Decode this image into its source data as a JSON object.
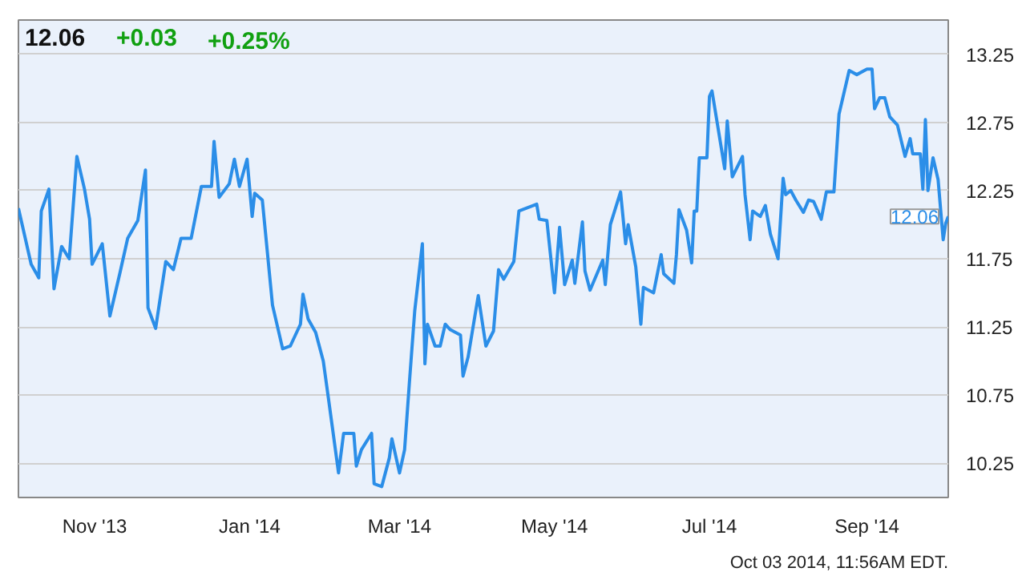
{
  "chart_data": {
    "type": "line",
    "title": "12.06",
    "annotations": [
      "+0.03",
      "+0.25%",
      {
        "text": "12.06",
        "x": "2014-10-03",
        "y": 12.06
      },
      "Oct 03 2014, 11:56AM EDT."
    ],
    "x": [
      "2013-10-02",
      "2013-10-07",
      "2013-10-10",
      "2013-10-11",
      "2013-10-14",
      "2013-10-16",
      "2013-10-19",
      "2013-10-22",
      "2013-10-25",
      "2013-10-28",
      "2013-10-30",
      "2013-10-31",
      "2013-11-04",
      "2013-11-07",
      "2013-11-11",
      "2013-11-14",
      "2013-11-18",
      "2013-11-21",
      "2013-11-22",
      "2013-11-25",
      "2013-11-29",
      "2013-12-02",
      "2013-12-05",
      "2013-12-09",
      "2013-12-13",
      "2013-12-17",
      "2013-12-18",
      "2013-12-20",
      "2013-12-24",
      "2013-12-26",
      "2013-12-28",
      "2013-12-31",
      "2014-01-02",
      "2014-01-03",
      "2014-01-06",
      "2014-01-10",
      "2014-01-14",
      "2014-01-17",
      "2014-01-21",
      "2014-01-22",
      "2014-01-24",
      "2014-01-27",
      "2014-01-30",
      "2014-02-01",
      "2014-02-05",
      "2014-02-07",
      "2014-02-11",
      "2014-02-12",
      "2014-02-14",
      "2014-02-18",
      "2014-02-19",
      "2014-02-22",
      "2014-02-25",
      "2014-02-26",
      "2014-03-01",
      "2014-03-03",
      "2014-03-05",
      "2014-03-07",
      "2014-03-10",
      "2014-03-11",
      "2014-03-12",
      "2014-03-15",
      "2014-03-17",
      "2014-03-19",
      "2014-03-21",
      "2014-03-25",
      "2014-03-26",
      "2014-03-28",
      "2014-04-01",
      "2014-04-04",
      "2014-04-07",
      "2014-04-09",
      "2014-04-11",
      "2014-04-15",
      "2014-04-17",
      "2014-04-24",
      "2014-04-25",
      "2014-04-28",
      "2014-05-01",
      "2014-05-03",
      "2014-05-05",
      "2014-05-08",
      "2014-05-09",
      "2014-05-12",
      "2014-05-13",
      "2014-05-15",
      "2014-05-20",
      "2014-05-21",
      "2014-05-23",
      "2014-05-27",
      "2014-05-29",
      "2014-05-30",
      "2014-06-02",
      "2014-06-04",
      "2014-06-05",
      "2014-06-09",
      "2014-06-12",
      "2014-06-13",
      "2014-06-17",
      "2014-06-18",
      "2014-06-19",
      "2014-06-22",
      "2014-06-24",
      "2014-06-25",
      "2014-06-26",
      "2014-06-27",
      "2014-06-30",
      "2014-07-01",
      "2014-07-02",
      "2014-07-07",
      "2014-07-08",
      "2014-07-10",
      "2014-07-14",
      "2014-07-15",
      "2014-07-17",
      "2014-07-18",
      "2014-07-21",
      "2014-07-23",
      "2014-07-25",
      "2014-07-28",
      "2014-07-30",
      "2014-07-31",
      "2014-08-02",
      "2014-08-04",
      "2014-08-07",
      "2014-08-09",
      "2014-08-11",
      "2014-08-14",
      "2014-08-16",
      "2014-08-19",
      "2014-08-21",
      "2014-08-25",
      "2014-08-28",
      "2014-09-01",
      "2014-09-03",
      "2014-09-04",
      "2014-09-06",
      "2014-09-08",
      "2014-09-10",
      "2014-09-13",
      "2014-09-16",
      "2014-09-18",
      "2014-09-19",
      "2014-09-22",
      "2014-09-23",
      "2014-09-24",
      "2014-09-25",
      "2014-09-27",
      "2014-09-29",
      "2014-10-01",
      "2014-10-02",
      "2014-10-03"
    ],
    "series": [
      {
        "color": "#2b8ee8",
        "values": [
          12.12,
          11.71,
          11.61,
          12.1,
          12.26,
          11.53,
          11.84,
          11.75,
          12.5,
          12.26,
          12.04,
          11.71,
          11.86,
          11.33,
          11.65,
          11.9,
          12.03,
          12.4,
          11.39,
          11.24,
          11.73,
          11.67,
          11.9,
          11.9,
          12.28,
          12.28,
          12.61,
          12.2,
          12.3,
          12.48,
          12.28,
          12.48,
          12.06,
          12.23,
          12.18,
          11.41,
          11.09,
          11.11,
          11.27,
          11.49,
          11.31,
          11.21,
          11.0,
          10.73,
          10.18,
          10.47,
          10.47,
          10.23,
          10.35,
          10.47,
          10.1,
          10.08,
          10.29,
          10.43,
          10.18,
          10.35,
          10.87,
          11.37,
          11.86,
          10.98,
          11.27,
          11.11,
          11.11,
          11.27,
          11.23,
          11.19,
          10.89,
          11.03,
          11.48,
          11.11,
          11.22,
          11.67,
          11.6,
          11.73,
          12.1,
          12.15,
          12.04,
          12.03,
          11.5,
          11.98,
          11.56,
          11.74,
          11.57,
          12.02,
          11.66,
          11.52,
          11.74,
          11.56,
          12.0,
          12.24,
          11.86,
          12.0,
          11.69,
          11.27,
          11.54,
          11.5,
          11.78,
          11.64,
          11.57,
          11.78,
          12.11,
          11.96,
          11.72,
          12.1,
          12.1,
          12.49,
          12.49,
          12.94,
          12.98,
          12.41,
          12.76,
          12.35,
          12.5,
          12.22,
          11.89,
          12.1,
          12.06,
          12.14,
          11.93,
          11.75,
          12.34,
          12.22,
          12.25,
          12.18,
          12.09,
          12.18,
          12.17,
          12.04,
          12.24,
          12.24,
          12.81,
          13.13,
          13.1,
          13.14,
          13.14,
          12.85,
          12.93,
          12.93,
          12.79,
          12.73,
          12.5,
          12.63,
          12.52,
          12.52,
          12.26,
          12.77,
          12.25,
          12.49,
          12.33,
          11.89,
          12.01,
          12.06
        ]
      }
    ],
    "xlim": [
      "2013-10-02",
      "2014-10-03"
    ],
    "xticks": [
      {
        "value": "2013-11-01",
        "label": "Nov '13"
      },
      {
        "value": "2014-01-01",
        "label": "Jan '14"
      },
      {
        "value": "2014-03-01",
        "label": "Mar '14"
      },
      {
        "value": "2014-05-01",
        "label": "May '14"
      },
      {
        "value": "2014-07-01",
        "label": "Jul '14"
      },
      {
        "value": "2014-09-01",
        "label": "Sep '14"
      }
    ],
    "ylim": [
      10.0,
      13.5
    ],
    "yticks": [
      10.25,
      10.75,
      11.25,
      11.75,
      12.25,
      12.75,
      13.25
    ],
    "grid": true,
    "marker": "none",
    "line_style": "solid"
  }
}
